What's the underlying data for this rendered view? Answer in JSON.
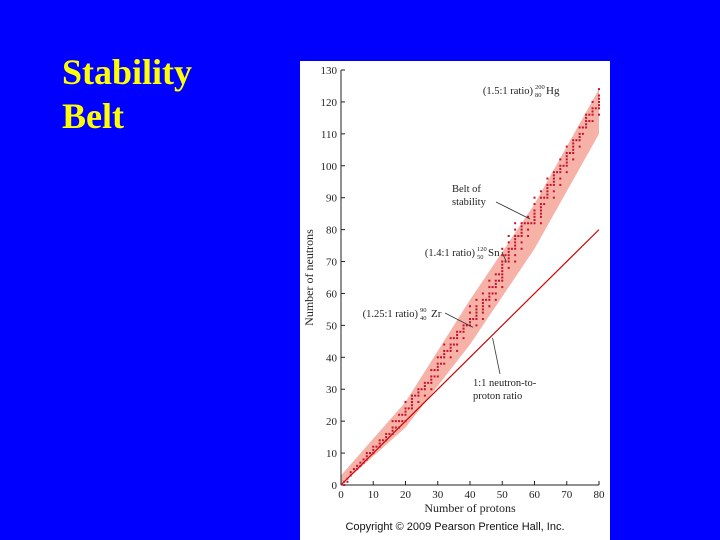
{
  "slide": {
    "title_line1": "Stability",
    "title_line2": "Belt"
  },
  "copyright": "Copyright © 2009 Pearson Prentice Hall, Inc.",
  "colors": {
    "background": "#0000ff",
    "title": "#ffff00",
    "belt_band": "#f6b2a6",
    "stable_nuclide": "#c8102e",
    "ratio_line": "#cc0000"
  },
  "chart_data": {
    "type": "scatter",
    "xlabel": "Number of protons",
    "ylabel": "Number of neutrons",
    "xlim": [
      0,
      80
    ],
    "ylim": [
      0,
      130
    ],
    "xticks": [
      0,
      10,
      20,
      30,
      40,
      50,
      60,
      70,
      80
    ],
    "yticks": [
      0,
      10,
      20,
      30,
      40,
      50,
      60,
      70,
      80,
      90,
      100,
      110,
      120,
      130
    ],
    "grid": false,
    "band": {
      "name": "Belt of stability",
      "lower": [
        [
          0,
          0
        ],
        [
          20,
          18
        ],
        [
          40,
          44
        ],
        [
          60,
          74
        ],
        [
          80,
          110
        ]
      ],
      "upper": [
        [
          0,
          3
        ],
        [
          20,
          26
        ],
        [
          40,
          58
        ],
        [
          60,
          88
        ],
        [
          80,
          124
        ]
      ]
    },
    "lines": [
      {
        "name": "1:1 neutron-to-proton ratio",
        "x": [
          0,
          80
        ],
        "y": [
          0,
          80
        ]
      }
    ],
    "stable_points_sampled": [
      [
        1,
        0
      ],
      [
        1,
        1
      ],
      [
        2,
        1
      ],
      [
        2,
        2
      ],
      [
        3,
        3
      ],
      [
        3,
        4
      ],
      [
        4,
        5
      ],
      [
        5,
        5
      ],
      [
        5,
        6
      ],
      [
        6,
        6
      ],
      [
        6,
        7
      ],
      [
        7,
        7
      ],
      [
        7,
        8
      ],
      [
        8,
        8
      ],
      [
        8,
        9
      ],
      [
        8,
        10
      ],
      [
        9,
        10
      ],
      [
        10,
        10
      ],
      [
        10,
        11
      ],
      [
        10,
        12
      ],
      [
        11,
        12
      ],
      [
        12,
        12
      ],
      [
        12,
        13
      ],
      [
        12,
        14
      ],
      [
        13,
        14
      ],
      [
        14,
        14
      ],
      [
        14,
        15
      ],
      [
        14,
        16
      ],
      [
        15,
        16
      ],
      [
        16,
        16
      ],
      [
        16,
        17
      ],
      [
        16,
        18
      ],
      [
        16,
        20
      ],
      [
        17,
        18
      ],
      [
        17,
        20
      ],
      [
        18,
        18
      ],
      [
        18,
        20
      ],
      [
        18,
        22
      ],
      [
        19,
        20
      ],
      [
        19,
        22
      ],
      [
        20,
        20
      ],
      [
        20,
        22
      ],
      [
        20,
        23
      ],
      [
        20,
        24
      ],
      [
        20,
        26
      ],
      [
        21,
        24
      ],
      [
        22,
        24
      ],
      [
        22,
        25
      ],
      [
        22,
        26
      ],
      [
        22,
        27
      ],
      [
        22,
        28
      ],
      [
        23,
        28
      ],
      [
        24,
        26
      ],
      [
        24,
        28
      ],
      [
        24,
        29
      ],
      [
        24,
        30
      ],
      [
        25,
        30
      ],
      [
        26,
        28
      ],
      [
        26,
        30
      ],
      [
        26,
        31
      ],
      [
        26,
        32
      ],
      [
        27,
        32
      ],
      [
        28,
        30
      ],
      [
        28,
        32
      ],
      [
        28,
        33
      ],
      [
        28,
        34
      ],
      [
        28,
        36
      ],
      [
        29,
        34
      ],
      [
        29,
        36
      ],
      [
        30,
        34
      ],
      [
        30,
        36
      ],
      [
        30,
        37
      ],
      [
        30,
        38
      ],
      [
        30,
        40
      ],
      [
        31,
        38
      ],
      [
        31,
        40
      ],
      [
        32,
        38
      ],
      [
        32,
        40
      ],
      [
        32,
        41
      ],
      [
        32,
        42
      ],
      [
        32,
        44
      ],
      [
        33,
        42
      ],
      [
        34,
        40
      ],
      [
        34,
        42
      ],
      [
        34,
        43
      ],
      [
        34,
        44
      ],
      [
        34,
        46
      ],
      [
        35,
        44
      ],
      [
        35,
        46
      ],
      [
        36,
        42
      ],
      [
        36,
        44
      ],
      [
        36,
        46
      ],
      [
        36,
        47
      ],
      [
        36,
        48
      ],
      [
        37,
        48
      ],
      [
        38,
        46
      ],
      [
        38,
        48
      ],
      [
        38,
        49
      ],
      [
        38,
        50
      ],
      [
        39,
        50
      ],
      [
        40,
        50
      ],
      [
        40,
        51
      ],
      [
        40,
        52
      ],
      [
        40,
        54
      ],
      [
        40,
        56
      ],
      [
        41,
        52
      ],
      [
        42,
        50
      ],
      [
        42,
        52
      ],
      [
        42,
        53
      ],
      [
        42,
        54
      ],
      [
        42,
        55
      ],
      [
        42,
        56
      ],
      [
        42,
        58
      ],
      [
        44,
        52
      ],
      [
        44,
        54
      ],
      [
        44,
        55
      ],
      [
        44,
        56
      ],
      [
        44,
        57
      ],
      [
        44,
        58
      ],
      [
        44,
        60
      ],
      [
        45,
        58
      ],
      [
        46,
        56
      ],
      [
        46,
        58
      ],
      [
        46,
        59
      ],
      [
        46,
        60
      ],
      [
        46,
        62
      ],
      [
        46,
        64
      ],
      [
        47,
        60
      ],
      [
        47,
        62
      ],
      [
        48,
        58
      ],
      [
        48,
        60
      ],
      [
        48,
        62
      ],
      [
        48,
        63
      ],
      [
        48,
        64
      ],
      [
        48,
        66
      ],
      [
        49,
        64
      ],
      [
        49,
        66
      ],
      [
        50,
        62
      ],
      [
        50,
        64
      ],
      [
        50,
        65
      ],
      [
        50,
        66
      ],
      [
        50,
        67
      ],
      [
        50,
        68
      ],
      [
        50,
        69
      ],
      [
        50,
        70
      ],
      [
        50,
        72
      ],
      [
        50,
        74
      ],
      [
        51,
        70
      ],
      [
        51,
        72
      ],
      [
        52,
        68
      ],
      [
        52,
        70
      ],
      [
        52,
        71
      ],
      [
        52,
        72
      ],
      [
        52,
        73
      ],
      [
        52,
        74
      ],
      [
        52,
        76
      ],
      [
        52,
        78
      ],
      [
        53,
        74
      ],
      [
        54,
        70
      ],
      [
        54,
        72
      ],
      [
        54,
        74
      ],
      [
        54,
        75
      ],
      [
        54,
        76
      ],
      [
        54,
        77
      ],
      [
        54,
        78
      ],
      [
        54,
        80
      ],
      [
        54,
        82
      ],
      [
        55,
        78
      ],
      [
        56,
        74
      ],
      [
        56,
        76
      ],
      [
        56,
        78
      ],
      [
        56,
        79
      ],
      [
        56,
        80
      ],
      [
        56,
        81
      ],
      [
        56,
        82
      ],
      [
        57,
        82
      ],
      [
        58,
        78
      ],
      [
        58,
        80
      ],
      [
        58,
        82
      ],
      [
        58,
        84
      ],
      [
        59,
        82
      ],
      [
        60,
        82
      ],
      [
        60,
        83
      ],
      [
        60,
        84
      ],
      [
        60,
        85
      ],
      [
        60,
        86
      ],
      [
        60,
        88
      ],
      [
        60,
        90
      ],
      [
        62,
        82
      ],
      [
        62,
        84
      ],
      [
        62,
        85
      ],
      [
        62,
        86
      ],
      [
        62,
        87
      ],
      [
        62,
        88
      ],
      [
        62,
        90
      ],
      [
        62,
        92
      ],
      [
        63,
        88
      ],
      [
        63,
        90
      ],
      [
        64,
        90
      ],
      [
        64,
        91
      ],
      [
        64,
        92
      ],
      [
        64,
        93
      ],
      [
        64,
        94
      ],
      [
        64,
        96
      ],
      [
        65,
        94
      ],
      [
        66,
        90
      ],
      [
        66,
        92
      ],
      [
        66,
        94
      ],
      [
        66,
        95
      ],
      [
        66,
        96
      ],
      [
        66,
        97
      ],
      [
        66,
        98
      ],
      [
        67,
        98
      ],
      [
        68,
        94
      ],
      [
        68,
        96
      ],
      [
        68,
        98
      ],
      [
        68,
        99
      ],
      [
        68,
        100
      ],
      [
        68,
        102
      ],
      [
        69,
        100
      ],
      [
        70,
        98
      ],
      [
        70,
        100
      ],
      [
        70,
        101
      ],
      [
        70,
        102
      ],
      [
        70,
        103
      ],
      [
        70,
        104
      ],
      [
        70,
        106
      ],
      [
        71,
        104
      ],
      [
        72,
        102
      ],
      [
        72,
        104
      ],
      [
        72,
        105
      ],
      [
        72,
        106
      ],
      [
        72,
        107
      ],
      [
        72,
        108
      ],
      [
        73,
        108
      ],
      [
        74,
        106
      ],
      [
        74,
        108
      ],
      [
        74,
        109
      ],
      [
        74,
        110
      ],
      [
        74,
        112
      ],
      [
        75,
        110
      ],
      [
        75,
        112
      ],
      [
        76,
        112
      ],
      [
        76,
        113
      ],
      [
        76,
        114
      ],
      [
        76,
        115
      ],
      [
        76,
        116
      ],
      [
        77,
        114
      ],
      [
        77,
        116
      ],
      [
        78,
        114
      ],
      [
        78,
        116
      ],
      [
        78,
        117
      ],
      [
        78,
        118
      ],
      [
        78,
        120
      ],
      [
        79,
        118
      ],
      [
        80,
        116
      ],
      [
        80,
        118
      ],
      [
        80,
        119
      ],
      [
        80,
        120
      ],
      [
        80,
        121
      ],
      [
        80,
        122
      ],
      [
        80,
        124
      ]
    ],
    "annotations": {
      "hg": {
        "text": "(1.5:1 ratio)",
        "symbol": "Hg",
        "mass": "200",
        "z": "80"
      },
      "belt": {
        "line1": "Belt of",
        "line2": "stability"
      },
      "sn": {
        "text": "(1.4:1 ratio)",
        "symbol": "Sn",
        "mass": "120",
        "z": "50"
      },
      "zr": {
        "text": "(1.25:1 ratio)",
        "symbol": "Zr",
        "mass": "90",
        "z": "40"
      },
      "ratio_line": {
        "line1": "1:1 neutron-to-",
        "line2": "proton ratio"
      }
    }
  }
}
